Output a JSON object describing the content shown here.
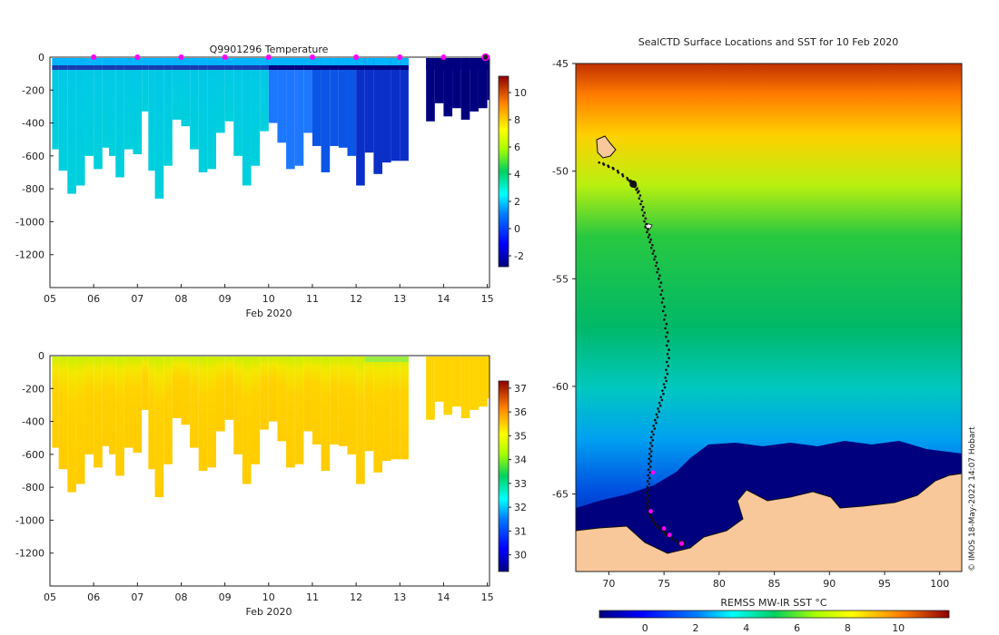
{
  "chart_data": [
    {
      "type": "heatmap",
      "title": "Q9901296  Temperature",
      "xlabel": "Feb 2020",
      "ylabel": "",
      "xlim": [
        5,
        15.05
      ],
      "ylim": [
        -1400,
        0
      ],
      "x_ticks": [
        "05",
        "06",
        "07",
        "08",
        "09",
        "10",
        "11",
        "12",
        "13",
        "14",
        "15"
      ],
      "y_ticks": [
        0,
        -200,
        -400,
        -600,
        -800,
        -1000,
        -1200
      ],
      "colorbar": {
        "ticks": [
          10,
          8,
          6,
          4,
          2,
          0,
          -2
        ],
        "range": [
          -2.8,
          11.2
        ]
      },
      "markers_x": [
        6,
        7,
        8,
        9,
        10,
        11,
        12,
        13,
        14,
        15
      ],
      "gap_days": [
        13.05,
        13.6
      ],
      "profiles": [
        {
          "day": 5.05,
          "depth": 560
        },
        {
          "day": 5.2,
          "depth": 690
        },
        {
          "day": 5.4,
          "depth": 830
        },
        {
          "day": 5.6,
          "depth": 780
        },
        {
          "day": 5.8,
          "depth": 600
        },
        {
          "day": 6.0,
          "depth": 680
        },
        {
          "day": 6.2,
          "depth": 550
        },
        {
          "day": 6.35,
          "depth": 600
        },
        {
          "day": 6.5,
          "depth": 730
        },
        {
          "day": 6.7,
          "depth": 560
        },
        {
          "day": 6.9,
          "depth": 590
        },
        {
          "day": 7.1,
          "depth": 330
        },
        {
          "day": 7.25,
          "depth": 690
        },
        {
          "day": 7.4,
          "depth": 860
        },
        {
          "day": 7.6,
          "depth": 660
        },
        {
          "day": 7.8,
          "depth": 380
        },
        {
          "day": 8.0,
          "depth": 420
        },
        {
          "day": 8.2,
          "depth": 560
        },
        {
          "day": 8.4,
          "depth": 700
        },
        {
          "day": 8.6,
          "depth": 680
        },
        {
          "day": 8.8,
          "depth": 460
        },
        {
          "day": 9.0,
          "depth": 390
        },
        {
          "day": 9.2,
          "depth": 600
        },
        {
          "day": 9.4,
          "depth": 780
        },
        {
          "day": 9.6,
          "depth": 660
        },
        {
          "day": 9.8,
          "depth": 450
        },
        {
          "day": 10.0,
          "depth": 400
        },
        {
          "day": 10.2,
          "depth": 520
        },
        {
          "day": 10.4,
          "depth": 680
        },
        {
          "day": 10.6,
          "depth": 660
        },
        {
          "day": 10.8,
          "depth": 460
        },
        {
          "day": 11.0,
          "depth": 540
        },
        {
          "day": 11.2,
          "depth": 700
        },
        {
          "day": 11.4,
          "depth": 540
        },
        {
          "day": 11.6,
          "depth": 550
        },
        {
          "day": 11.8,
          "depth": 600
        },
        {
          "day": 12.0,
          "depth": 780
        },
        {
          "day": 12.2,
          "depth": 580
        },
        {
          "day": 12.4,
          "depth": 710
        },
        {
          "day": 12.6,
          "depth": 640
        },
        {
          "day": 12.8,
          "depth": 630
        },
        {
          "day": 13.0,
          "depth": 630
        },
        {
          "day": 13.6,
          "depth": 390
        },
        {
          "day": 13.8,
          "depth": 280
        },
        {
          "day": 14.0,
          "depth": 360
        },
        {
          "day": 14.2,
          "depth": 310
        },
        {
          "day": 14.4,
          "depth": 380
        },
        {
          "day": 14.6,
          "depth": 330
        },
        {
          "day": 14.8,
          "depth": 310
        },
        {
          "day": 15.0,
          "depth": 260
        }
      ]
    },
    {
      "type": "heatmap",
      "title": "",
      "xlabel": "Feb 2020",
      "ylabel": "",
      "xlim": [
        5,
        15.05
      ],
      "ylim": [
        -1400,
        0
      ],
      "x_ticks": [
        "05",
        "06",
        "07",
        "08",
        "09",
        "10",
        "11",
        "12",
        "13",
        "14",
        "15"
      ],
      "y_ticks": [
        0,
        -200,
        -400,
        -600,
        -800,
        -1000,
        -1200
      ],
      "colorbar": {
        "ticks": [
          37,
          36,
          35,
          34,
          33,
          32,
          31,
          30
        ],
        "range": [
          29.3,
          37.3
        ]
      },
      "gap_days": [
        13.05,
        13.6
      ]
    },
    {
      "type": "heatmap",
      "title": "SealCTD Surface Locations and SST for 10 Feb 2020",
      "xlabel": "",
      "ylabel": "",
      "xlim": [
        67,
        102
      ],
      "ylim": [
        -68.6,
        -45
      ],
      "x_ticks": [
        70,
        75,
        80,
        85,
        90,
        95,
        100
      ],
      "y_ticks": [
        -45,
        -50,
        -55,
        -60,
        -65
      ],
      "colorbar": {
        "label": "REMSS MW-IR SST °C",
        "ticks": [
          0,
          2,
          4,
          6,
          8,
          10
        ],
        "range": [
          -1.8,
          12
        ]
      },
      "track": [
        {
          "lon": 69.2,
          "lat": -49.6
        },
        {
          "lon": 70.5,
          "lat": -49.9
        },
        {
          "lon": 71.8,
          "lat": -50.4
        },
        {
          "lon": 72.3,
          "lat": -50.6
        },
        {
          "lon": 72.7,
          "lat": -51.0
        },
        {
          "lon": 73.1,
          "lat": -51.8
        },
        {
          "lon": 73.4,
          "lat": -52.6
        },
        {
          "lon": 73.8,
          "lat": -53.3
        },
        {
          "lon": 74.2,
          "lat": -54.1
        },
        {
          "lon": 74.6,
          "lat": -55.0
        },
        {
          "lon": 74.9,
          "lat": -56.1
        },
        {
          "lon": 75.2,
          "lat": -57.3
        },
        {
          "lon": 75.4,
          "lat": -58.5
        },
        {
          "lon": 75.2,
          "lat": -59.6
        },
        {
          "lon": 74.8,
          "lat": -60.5
        },
        {
          "lon": 74.4,
          "lat": -61.3
        },
        {
          "lon": 74.0,
          "lat": -62.1
        },
        {
          "lon": 73.8,
          "lat": -62.9
        },
        {
          "lon": 73.7,
          "lat": -63.6
        },
        {
          "lon": 73.6,
          "lat": -64.4
        },
        {
          "lon": 73.5,
          "lat": -65.2
        },
        {
          "lon": 73.6,
          "lat": -65.9
        },
        {
          "lon": 74.2,
          "lat": -66.4
        },
        {
          "lon": 74.9,
          "lat": -66.7
        },
        {
          "lon": 75.5,
          "lat": -67.0
        },
        {
          "lon": 76.5,
          "lat": -67.3
        }
      ],
      "highlight_points": [
        {
          "lon": 74.0,
          "lat": -64.0
        },
        {
          "lon": 73.8,
          "lat": -65.8
        },
        {
          "lon": 75.0,
          "lat": -66.6
        },
        {
          "lon": 75.5,
          "lat": -66.9
        },
        {
          "lon": 76.6,
          "lat": -67.3
        }
      ],
      "land_color": "#f9c89a"
    }
  ],
  "credit": "© IMOS 18-May-2022 14:07 Hobart",
  "colors": {
    "jet": [
      "#00007f",
      "#0000ff",
      "#007fff",
      "#00ffff",
      "#7fff7f",
      "#ffff00",
      "#ff7f00",
      "#ff0000",
      "#7f0000"
    ],
    "marker": "#ff00ff",
    "land": "#f9c89a"
  }
}
